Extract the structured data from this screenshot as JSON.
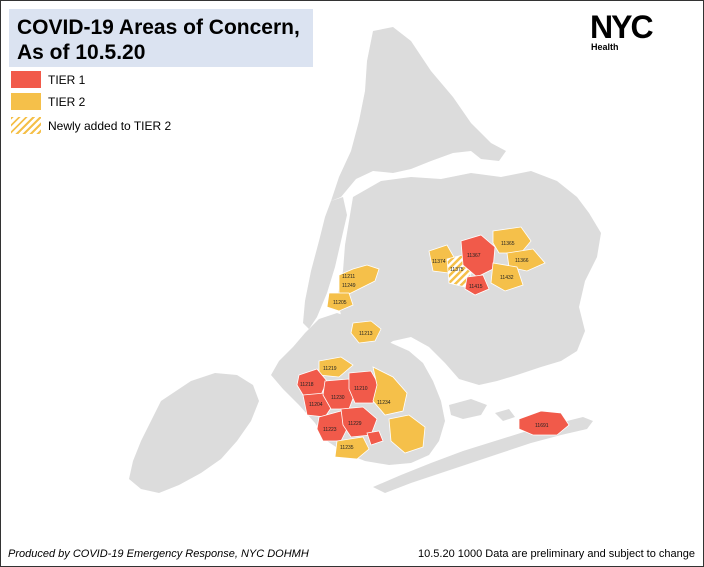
{
  "title": {
    "line1": "COVID-19 Areas of Concern,",
    "line2": "As of 10.5.20"
  },
  "legend": {
    "items": [
      {
        "label": "TIER 1",
        "color": "#f15a4a",
        "pattern": "solid"
      },
      {
        "label": "TIER 2",
        "color": "#f5c04a",
        "pattern": "solid"
      },
      {
        "label": "Newly added to TIER 2",
        "color": "#f5c04a",
        "pattern": "hatched"
      }
    ]
  },
  "logo": {
    "word": "NYC",
    "sub": "Health"
  },
  "footer": {
    "left": "Produced by COVID-19 Emergency Response, NYC DOHMH",
    "right": "10.5.20 1000 Data are preliminary and subject to change"
  },
  "colors": {
    "land": "#dcdcdc",
    "tier1": "#f15a4a",
    "tier2": "#f5c04a",
    "title_bg": "#dbe3f1"
  },
  "zip_labels": {
    "z11211": "11211",
    "z11249": "11249",
    "z11205": "11205",
    "z11213": "11213",
    "z11219": "11219",
    "z11218": "11218",
    "z11204": "11204",
    "z11230": "11230",
    "z11210": "11210",
    "z11234": "11234",
    "z11223": "11223",
    "z11229": "11229",
    "z11235": "11235",
    "z11374": "11374",
    "z11375": "11375",
    "z11367": "11367",
    "z11415": "11415",
    "z11365": "11365",
    "z11366": "11366",
    "z11432": "11432",
    "z11691": "11691"
  }
}
